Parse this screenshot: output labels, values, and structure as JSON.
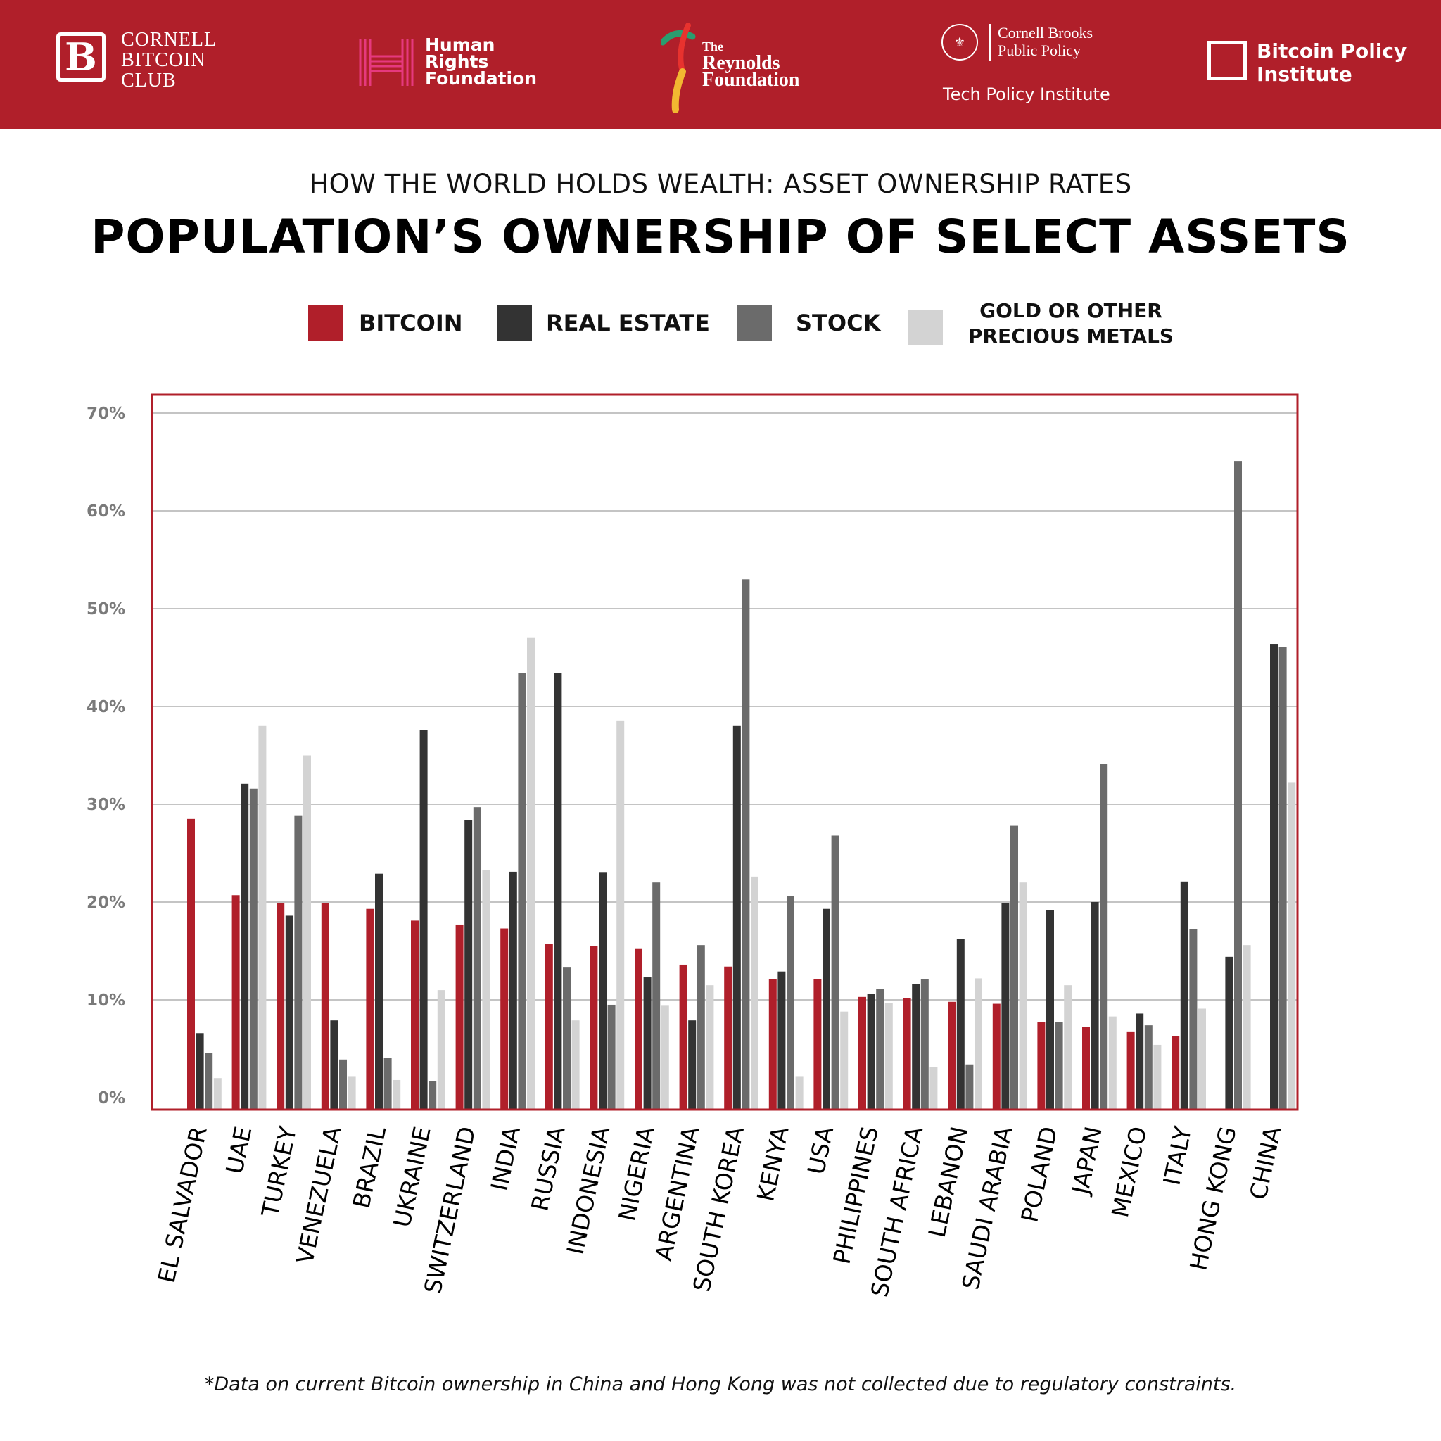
{
  "header": {
    "logos": [
      {
        "name": "cornell-bitcoin-club",
        "lines": [
          "CORNELL",
          "BITCOIN",
          "CLUB"
        ],
        "mark": "B"
      },
      {
        "name": "human-rights-foundation",
        "lines": [
          "Human",
          "Rights",
          "Foundation"
        ]
      },
      {
        "name": "reynolds-foundation",
        "lines": [
          "The",
          "Reynolds",
          "Foundation"
        ]
      },
      {
        "name": "cornell-brooks",
        "lines": [
          "Cornell Brooks",
          "Public Policy"
        ],
        "sub": "Tech Policy Institute"
      },
      {
        "name": "bitcoin-policy-institute",
        "lines": [
          "Bitcoin Policy",
          "Institute"
        ]
      }
    ],
    "background": "#b01f2a"
  },
  "subtitle": "HOW THE WORLD HOLDS WEALTH: ASSET OWNERSHIP RATES",
  "title": "POPULATION’S OWNERSHIP OF SELECT ASSETS",
  "legend": [
    {
      "label": "BITCOIN",
      "color": "#b01f2a"
    },
    {
      "label": "REAL ESTATE",
      "color": "#333333"
    },
    {
      "label": "STOCK",
      "color": "#6b6b6b"
    },
    {
      "label": "GOLD OR OTHER",
      "label2": "PRECIOUS METALS",
      "color": "#d3d3d3"
    }
  ],
  "footnote": "*Data on current Bitcoin ownership in China and Hong Kong was not collected due to regulatory constraints.",
  "chart_data": {
    "type": "bar",
    "title": "POPULATION’S OWNERSHIP OF SELECT ASSETS",
    "subtitle": "HOW THE WORLD HOLDS WEALTH: ASSET OWNERSHIP RATES",
    "categories": [
      "EL SALVADOR",
      "UAE",
      "TURKEY",
      "VENEZUELA",
      "BRAZIL",
      "UKRAINE",
      "SWITZERLAND",
      "INDIA",
      "RUSSIA",
      "INDONESIA",
      "NIGERIA",
      "ARGENTINA",
      "SOUTH KOREA",
      "KENYA",
      "USA",
      "PHILIPPINES",
      "SOUTH AFRICA",
      "LEBANON",
      "SAUDI ARABIA",
      "POLAND",
      "JAPAN",
      "MEXICO",
      "ITALY",
      "HONG KONG",
      "CHINA"
    ],
    "series": [
      {
        "name": "BITCOIN",
        "color": "#b01f2a",
        "values": [
          28.5,
          20.7,
          19.9,
          19.9,
          19.3,
          18.1,
          17.7,
          17.3,
          15.7,
          15.5,
          15.2,
          13.6,
          13.4,
          12.1,
          12.1,
          10.3,
          10.2,
          9.8,
          9.6,
          7.7,
          7.2,
          6.7,
          6.3,
          null,
          null
        ]
      },
      {
        "name": "REAL ESTATE",
        "color": "#333333",
        "values": [
          6.6,
          32.1,
          18.6,
          7.9,
          22.9,
          37.6,
          28.4,
          23.1,
          43.4,
          23.0,
          12.3,
          7.9,
          38.0,
          12.9,
          19.3,
          10.6,
          11.6,
          16.2,
          19.9,
          19.2,
          20.0,
          8.6,
          22.1,
          14.4,
          46.4
        ]
      },
      {
        "name": "STOCK",
        "color": "#6b6b6b",
        "values": [
          4.6,
          31.6,
          28.8,
          3.9,
          4.1,
          1.7,
          29.7,
          43.4,
          13.3,
          9.5,
          22.0,
          15.6,
          53.0,
          20.6,
          26.8,
          11.1,
          12.1,
          3.4,
          27.8,
          7.7,
          34.1,
          7.4,
          17.2,
          65.1,
          46.1
        ]
      },
      {
        "name": "GOLD OR OTHER PRECIOUS METALS",
        "color": "#d3d3d3",
        "values": [
          2.0,
          38.0,
          35.0,
          2.2,
          1.8,
          11.0,
          23.3,
          47.0,
          7.9,
          38.5,
          9.4,
          11.5,
          22.6,
          2.2,
          8.8,
          9.7,
          3.1,
          12.2,
          22.0,
          11.5,
          8.3,
          5.4,
          9.1,
          15.6,
          32.2
        ]
      }
    ],
    "ylim": [
      0,
      70
    ],
    "yticks": [
      0,
      10,
      20,
      30,
      40,
      50,
      60,
      70
    ],
    "ytick_labels": [
      "0%",
      "10%",
      "20%",
      "30%",
      "40%",
      "50%",
      "60%",
      "70%"
    ],
    "xlabel": "",
    "ylabel": "",
    "grid": true,
    "legend_position": "top",
    "frame_color": "#b01f2a"
  }
}
